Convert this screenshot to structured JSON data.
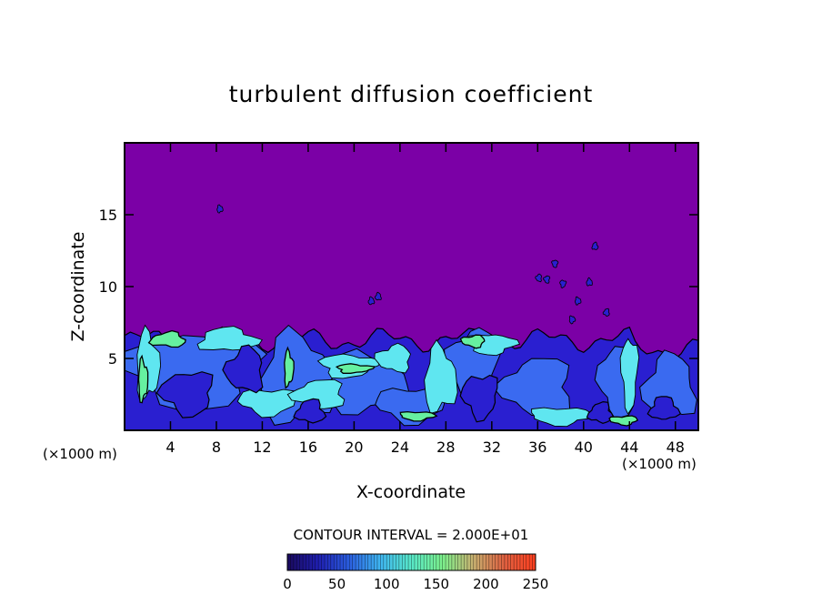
{
  "chart_data": {
    "type": "heatmap",
    "title": "turbulent diffusion coefficient",
    "xlabel": "X-coordinate",
    "ylabel": "Z-coordinate",
    "x_unit": "(×1000 m)",
    "x_unit_right": "(×1000 m)",
    "xlim": [
      0,
      50
    ],
    "ylim": [
      0,
      20
    ],
    "x_ticks": [
      4,
      8,
      12,
      16,
      20,
      24,
      28,
      32,
      36,
      40,
      44,
      48
    ],
    "y_ticks": [
      5,
      10,
      15
    ],
    "contour_interval_label": "CONTOUR INTERVAL = 2.000E+01",
    "colorbar": {
      "range": [
        0,
        250
      ],
      "ticks": [
        0,
        50,
        100,
        150,
        200,
        250
      ],
      "colors": [
        "#1a0a5c",
        "#1f1fb0",
        "#2b5fe0",
        "#3fb6f0",
        "#58e8c8",
        "#7cf08c",
        "#c8b070",
        "#e06040",
        "#ff4020"
      ]
    },
    "background_value": 0,
    "turbulent_layer_top_z": 7.5,
    "colors": {
      "background": "#7b00a6",
      "low": "#2a1fd0",
      "mid": "#3a6af0",
      "high": "#5fe6f0",
      "peak": "#66f0a0"
    }
  }
}
